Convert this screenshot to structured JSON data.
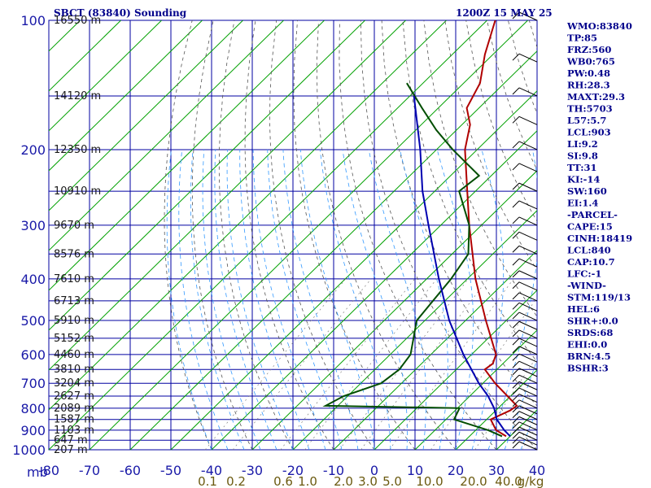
{
  "header": {
    "title": "SBCT (83840) Sounding",
    "valid_time": "1200Z 15 MAY 25"
  },
  "indices": [
    "WMO:83840",
    "TP:85",
    "FRZ:560",
    "WB0:765",
    "PW:0.48",
    "RH:28.3",
    "MAXT:29.3",
    "TH:5703",
    "L57:5.7",
    "LCL:903",
    "LI:9.2",
    "SI:9.8",
    "TT:31",
    "KI:-14",
    "SW:160",
    "EI:1.4",
    "-PARCEL-",
    "CAPE:15",
    "CINH:18419",
    "LCL:840",
    "CAP:10.7",
    "LFC:-1",
    "-WIND-",
    "STM:119/13",
    "HEL:6",
    "SHR+:0.0",
    "SRDS:68",
    "EHI:0.0",
    "BRN:4.5",
    "BSHR:3"
  ],
  "colors": {
    "grid": "#0000a0",
    "isotherm": "#00a000",
    "dry_adiabat": "#555555",
    "moist_adiabat": "#3399ff",
    "temperature": "#b00000",
    "dewpoint": "#004d00",
    "parcel": "#0000b0",
    "text": "#00008b",
    "mixing_ratio_text": "#6b5a10"
  },
  "chart_data": {
    "type": "skew-t",
    "ylabel": "mb",
    "xlabel": "",
    "pressure_axis": {
      "scale": "log",
      "range": [
        1000,
        100
      ],
      "ticks": [
        100,
        200,
        300,
        400,
        500,
        600,
        700,
        800,
        900,
        1000
      ]
    },
    "temperature_axis": {
      "range": [
        -80,
        40
      ],
      "ticks": [
        -80,
        -70,
        -60,
        -50,
        -40,
        -30,
        -20,
        -10,
        0,
        10,
        20,
        30,
        40
      ]
    },
    "height_labels": [
      {
        "p": 100,
        "label": "16550 m"
      },
      {
        "p": 150,
        "label": "14120 m"
      },
      {
        "p": 200,
        "label": "12350 m"
      },
      {
        "p": 250,
        "label": "10910 m"
      },
      {
        "p": 300,
        "label": "9670 m"
      },
      {
        "p": 350,
        "label": "8576 m"
      },
      {
        "p": 400,
        "label": "7610 m"
      },
      {
        "p": 450,
        "label": "6713 m"
      },
      {
        "p": 500,
        "label": "5910 m"
      },
      {
        "p": 550,
        "label": "5152 m"
      },
      {
        "p": 600,
        "label": "4460 m"
      },
      {
        "p": 650,
        "label": "3810 m"
      },
      {
        "p": 700,
        "label": "3204 m"
      },
      {
        "p": 750,
        "label": "2627 m"
      },
      {
        "p": 800,
        "label": "2089 m"
      },
      {
        "p": 850,
        "label": "1587 m"
      },
      {
        "p": 900,
        "label": "1103 m"
      },
      {
        "p": 950,
        "label": "647 m"
      },
      {
        "p": 1000,
        "label": "207 m"
      }
    ],
    "mixing_ratio_labels": [
      "0.1",
      "0.2",
      "0.6",
      "1.0",
      "2.0",
      "3.0",
      "5.0",
      "10.0",
      "20.0",
      "40.0",
      "g/kg"
    ],
    "series": [
      {
        "name": "",
        "kind": "temperature",
        "points": [
          [
            930,
            29.0
          ],
          [
            900,
            25.0
          ],
          [
            850,
            21.0
          ],
          [
            810,
            23.5
          ],
          [
            790,
            24.0
          ],
          [
            700,
            13.0
          ],
          [
            650,
            7.0
          ],
          [
            630,
            7.5
          ],
          [
            600,
            6.0
          ],
          [
            500,
            -5.0
          ],
          [
            400,
            -18.0
          ],
          [
            300,
            -33.0
          ],
          [
            250,
            -42.0
          ],
          [
            200,
            -53.0
          ],
          [
            175,
            -58.0
          ],
          [
            160,
            -63.0
          ],
          [
            140,
            -66.0
          ],
          [
            120,
            -72.0
          ],
          [
            100,
            -78.0
          ]
        ]
      },
      {
        "name": "",
        "kind": "dewpoint",
        "points": [
          [
            930,
            28.0
          ],
          [
            900,
            23.0
          ],
          [
            850,
            12.0
          ],
          [
            800,
            10.5
          ],
          [
            790,
            -23.0
          ],
          [
            750,
            -21.0
          ],
          [
            700,
            -15.0
          ],
          [
            650,
            -14.0
          ],
          [
            600,
            -15.0
          ],
          [
            500,
            -22.0
          ],
          [
            400,
            -24.0
          ],
          [
            350,
            -26.0
          ],
          [
            300,
            -33.0
          ],
          [
            250,
            -44.0
          ],
          [
            230,
            -43.0
          ],
          [
            200,
            -56.0
          ],
          [
            180,
            -65.0
          ],
          [
            160,
            -74.0
          ],
          [
            140,
            -84.0
          ]
        ]
      },
      {
        "name": "",
        "kind": "parcel",
        "points": [
          [
            930,
            30.0
          ],
          [
            900,
            27.0
          ],
          [
            850,
            22.5
          ],
          [
            800,
            19.0
          ],
          [
            750,
            14.5
          ],
          [
            700,
            9.0
          ],
          [
            600,
            -2.0
          ],
          [
            500,
            -14.0
          ],
          [
            400,
            -27.0
          ],
          [
            300,
            -43.0
          ],
          [
            250,
            -53.0
          ],
          [
            200,
            -64.0
          ],
          [
            150,
            -79.0
          ]
        ]
      }
    ],
    "wind_profile_note": "",
    "grid": true
  }
}
